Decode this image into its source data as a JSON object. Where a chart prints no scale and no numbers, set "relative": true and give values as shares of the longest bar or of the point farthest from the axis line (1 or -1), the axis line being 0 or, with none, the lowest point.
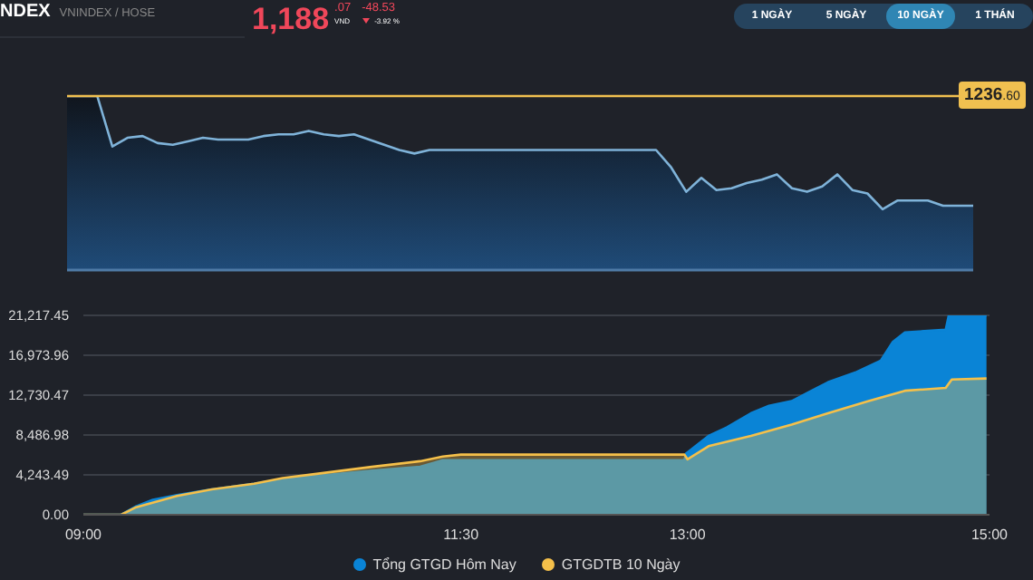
{
  "chart_data": [
    {
      "type": "area",
      "title": "NDEX",
      "subtitle": "VNINDEX / HOSE",
      "annotations": [
        "1,188",
        ".07",
        "VND",
        "-48.53",
        "-3.92 %",
        "1 NGÀY",
        "5 NGÀY",
        "10 NGÀY",
        "1 THÁN",
        "1236.60"
      ],
      "relative": true,
      "grid": false,
      "legend": false,
      "marker": "none",
      "categories": [
        null,
        null,
        null,
        null,
        null,
        null,
        null,
        null,
        null,
        null,
        null,
        null,
        null,
        null,
        null,
        null,
        null,
        null,
        null,
        null,
        null,
        null,
        null,
        null,
        null,
        null,
        null,
        null,
        null,
        null,
        null,
        null,
        null,
        null,
        null,
        null,
        null,
        null,
        null,
        null,
        null,
        null,
        null,
        null,
        null,
        null,
        null,
        null,
        null,
        null,
        null,
        null,
        null,
        null,
        null,
        null,
        null,
        null,
        null,
        null,
        null
      ],
      "ref_lines": [
        {
          "axis": "y",
          "value": 1,
          "color": "#f0c050"
        }
      ],
      "series": [
        {
          "color": "#7fb3d9",
          "values": [
            1.0,
            1.0,
            1.0,
            0.71,
            0.76,
            0.77,
            0.73,
            0.72,
            0.74,
            0.76,
            0.75,
            0.75,
            0.75,
            0.77,
            0.78,
            0.78,
            0.8,
            0.78,
            0.77,
            0.78,
            0.75,
            0.72,
            0.69,
            0.67,
            0.69,
            0.69,
            0.69,
            0.69,
            0.69,
            0.69,
            0.69,
            0.69,
            0.69,
            0.69,
            0.69,
            0.69,
            0.69,
            0.69,
            0.69,
            0.69,
            0.59,
            0.45,
            0.53,
            0.46,
            0.47,
            0.5,
            0.52,
            0.55,
            0.47,
            0.45,
            0.48,
            0.55,
            0.46,
            0.44,
            0.35,
            0.4,
            0.4,
            0.4,
            0.37,
            0.37,
            0.37
          ]
        }
      ]
    },
    {
      "type": "area",
      "xlim": [
        9,
        15
      ],
      "xticks": [
        {
          "value": 9,
          "label": "09:00"
        },
        {
          "value": 11.5,
          "label": "11:30"
        },
        {
          "value": 13,
          "label": "13:00"
        },
        {
          "value": 15,
          "label": "15:00"
        }
      ],
      "ylim": [
        0,
        21217.45
      ],
      "yticks": [
        {
          "value": 0,
          "label": "0.00"
        },
        {
          "value": 4243.49,
          "label": "4,243.49"
        },
        {
          "value": 8486.98,
          "label": "8,486.98"
        },
        {
          "value": 12730.47,
          "label": "12,730.47"
        },
        {
          "value": 16973.96,
          "label": "16,973.96"
        },
        {
          "value": 21217.45,
          "label": "21,217.45"
        }
      ],
      "grid": "y",
      "legend": "bottom",
      "marker": "none",
      "series": [
        {
          "name": "Tổng GTGD Hôm Nay",
          "color": "#0a84d6",
          "x": [
            9.0,
            9.25,
            9.35,
            9.46,
            9.62,
            9.85,
            10.13,
            10.32,
            10.52,
            10.91,
            11.23,
            11.38,
            11.5,
            12.98,
            12.99,
            13.14,
            13.26,
            13.42,
            13.54,
            13.69,
            13.81,
            13.93,
            14.12,
            14.28,
            14.36,
            14.44,
            14.71,
            14.73,
            14.98
          ],
          "values": [
            0,
            0,
            900,
            1600,
            2100,
            2700,
            3300,
            3800,
            4100,
            4700,
            5100,
            5800,
            5800,
            5800,
            6500,
            8400,
            9300,
            10800,
            11600,
            12100,
            13100,
            14100,
            15200,
            16400,
            18400,
            19400,
            19700,
            21200,
            21200
          ]
        },
        {
          "name": "GTGDTB 10 Ngày",
          "color": "#f5c04a",
          "x": [
            9.0,
            9.25,
            9.35,
            9.62,
            9.85,
            10.13,
            10.32,
            10.52,
            10.91,
            11.23,
            11.38,
            11.5,
            12.98,
            13.0,
            13.14,
            13.42,
            13.69,
            13.93,
            14.2,
            14.44,
            14.71,
            14.75,
            14.98
          ],
          "values": [
            0,
            0,
            800,
            2000,
            2700,
            3300,
            3900,
            4300,
            5100,
            5700,
            6200,
            6400,
            6400,
            5900,
            7300,
            8400,
            9600,
            10800,
            12100,
            13200,
            13500,
            14400,
            14500
          ]
        }
      ]
    }
  ]
}
